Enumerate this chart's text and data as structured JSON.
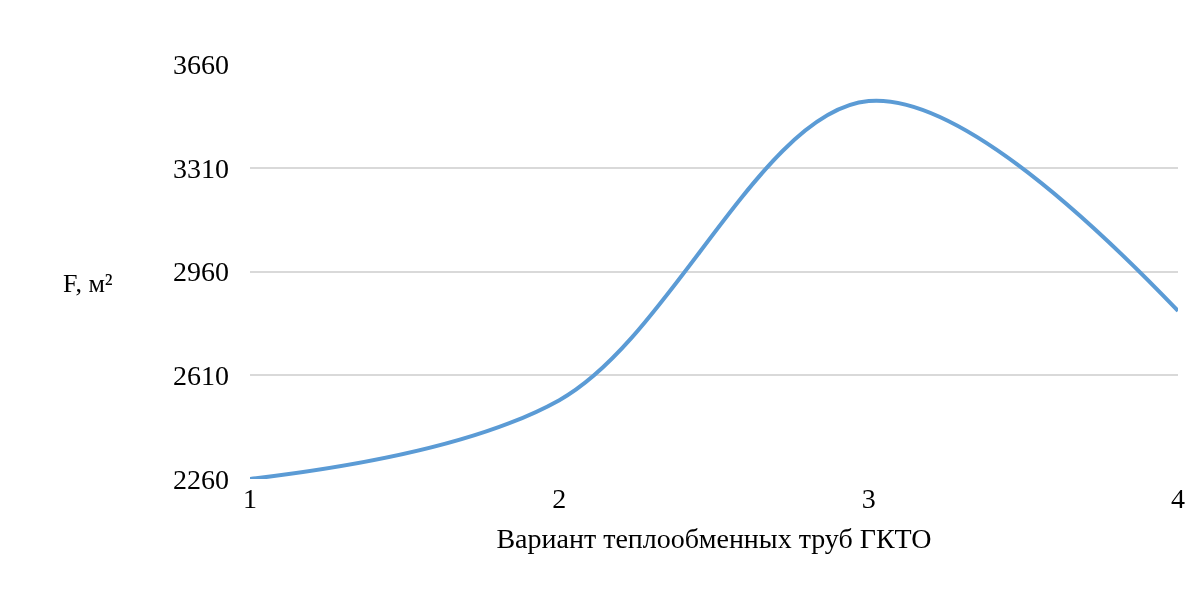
{
  "chart_data": {
    "type": "line",
    "xlabel": "Вариант теплообменных труб ГКТО",
    "ylabel": "F, м²",
    "x": [
      1,
      2,
      3,
      4
    ],
    "series": [
      {
        "color": "#5b9bd5",
        "values": [
          2260,
          2526,
          3535,
          2827
        ]
      }
    ],
    "xlim": [
      1,
      4
    ],
    "xticks": [
      1,
      2,
      3,
      4
    ],
    "ylim": [
      2260,
      3660
    ],
    "yticks": [
      2260,
      2610,
      2960,
      3310,
      3660
    ],
    "grid": "y",
    "legend": false,
    "marker": "none",
    "line_style": "solid"
  }
}
